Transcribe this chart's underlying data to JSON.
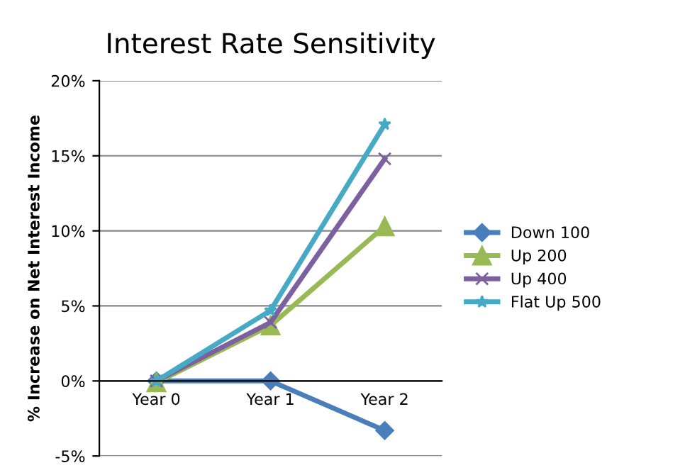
{
  "chart_data": {
    "type": "line",
    "title": "Interest Rate Sensitivity",
    "ylabel": "% Increase on Net Interest Income",
    "categories": [
      "Year 0",
      "Year 1",
      "Year 2"
    ],
    "series": [
      {
        "name": "Down 100",
        "color": "#4a7ebb",
        "marker": "diamond",
        "values": [
          0,
          0.0,
          -3.3
        ]
      },
      {
        "name": "Up 200",
        "color": "#98b954",
        "marker": "triangle",
        "values": [
          -0.1,
          3.7,
          10.3
        ]
      },
      {
        "name": "Up 400",
        "color": "#7d60a0",
        "marker": "cross",
        "values": [
          0,
          3.9,
          14.8
        ]
      },
      {
        "name": "Flat Up 500",
        "color": "#46aac5",
        "marker": "star",
        "values": [
          0,
          4.7,
          17.1
        ]
      }
    ],
    "ylim": [
      -5,
      20
    ],
    "yticks": [
      {
        "value": -5,
        "label": "-5%"
      },
      {
        "value": 0,
        "label": "0%"
      },
      {
        "value": 5,
        "label": "5%"
      },
      {
        "value": 10,
        "label": "10%"
      },
      {
        "value": 15,
        "label": "15%"
      },
      {
        "value": 20,
        "label": "20%"
      }
    ],
    "grid": "y",
    "legend": "right",
    "line_style": "solid"
  }
}
